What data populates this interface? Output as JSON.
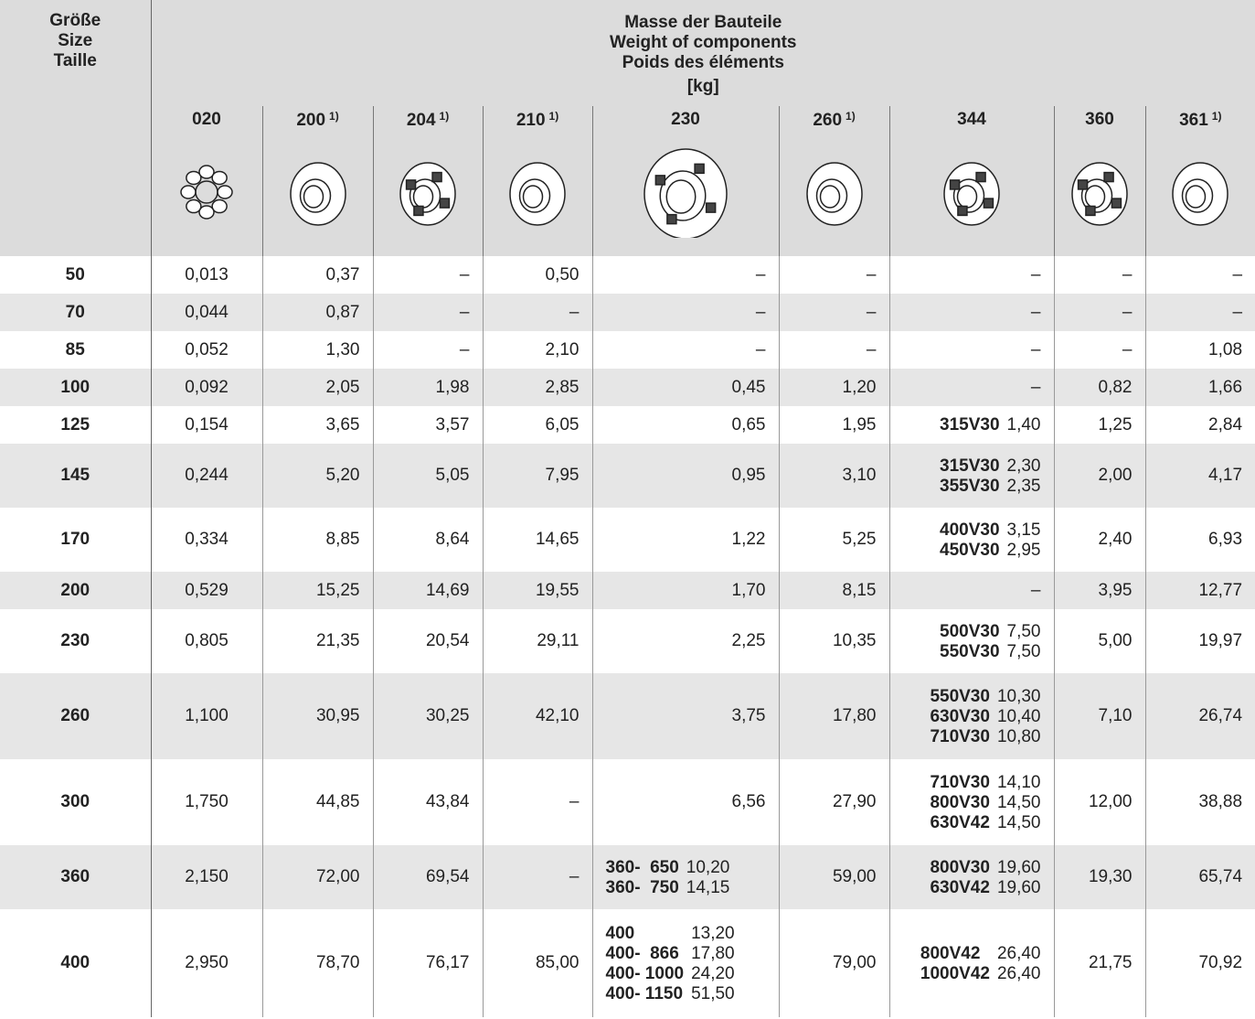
{
  "header": {
    "size_label": [
      "Größe",
      "Size",
      "Taille"
    ],
    "title": [
      "Masse der Bauteile",
      "Weight of components",
      "Poids des éléments"
    ],
    "unit": "[kg]"
  },
  "table": {
    "columns": [
      {
        "code": "020"
      },
      {
        "code": "200",
        "note": "1)"
      },
      {
        "code": "204",
        "note": "1)"
      },
      {
        "code": "210",
        "note": "1)"
      },
      {
        "code": "230"
      },
      {
        "code": "260",
        "note": "1)"
      },
      {
        "code": "344"
      },
      {
        "code": "360"
      },
      {
        "code": "361",
        "note": "1)"
      }
    ],
    "rows": [
      {
        "size": "50",
        "cells": [
          "0,013",
          "0,37",
          "–",
          "0,50",
          "–",
          "–",
          "–",
          "–",
          "–"
        ]
      },
      {
        "size": "70",
        "cells": [
          "0,044",
          "0,87",
          "–",
          "–",
          "–",
          "–",
          "–",
          "–",
          "–"
        ]
      },
      {
        "size": "85",
        "cells": [
          "0,052",
          "1,30",
          "–",
          "2,10",
          "–",
          "–",
          "–",
          "–",
          "1,08"
        ]
      },
      {
        "size": "100",
        "cells": [
          "0,092",
          "2,05",
          "1,98",
          "2,85",
          "0,45",
          "1,20",
          "–",
          "0,82",
          "1,66"
        ]
      },
      {
        "size": "125",
        "cells": [
          "0,154",
          "3,65",
          "3,57",
          "6,05",
          "0,65",
          "1,95",
          [
            {
              "label": "315V30",
              "value": "1,40"
            }
          ],
          "1,25",
          "2,84"
        ]
      },
      {
        "size": "145",
        "cells": [
          "0,244",
          "5,20",
          "5,05",
          "7,95",
          "0,95",
          "3,10",
          [
            {
              "label": "315V30",
              "value": "2,30"
            },
            {
              "label": "355V30",
              "value": "2,35"
            }
          ],
          "2,00",
          "4,17"
        ]
      },
      {
        "size": "170",
        "cells": [
          "0,334",
          "8,85",
          "8,64",
          "14,65",
          "1,22",
          "5,25",
          [
            {
              "label": "400V30",
              "value": "3,15"
            },
            {
              "label": "450V30",
              "value": "2,95"
            }
          ],
          "2,40",
          "6,93"
        ]
      },
      {
        "size": "200",
        "cells": [
          "0,529",
          "15,25",
          "14,69",
          "19,55",
          "1,70",
          "8,15",
          "–",
          "3,95",
          "12,77"
        ]
      },
      {
        "size": "230",
        "cells": [
          "0,805",
          "21,35",
          "20,54",
          "29,11",
          "2,25",
          "10,35",
          [
            {
              "label": "500V30",
              "value": "7,50"
            },
            {
              "label": "550V30",
              "value": "7,50"
            }
          ],
          "5,00",
          "19,97"
        ]
      },
      {
        "size": "260",
        "cells": [
          "1,100",
          "30,95",
          "30,25",
          "42,10",
          "3,75",
          "17,80",
          [
            {
              "label": "550V30",
              "value": "10,30"
            },
            {
              "label": "630V30",
              "value": "10,40"
            },
            {
              "label": "710V30",
              "value": "10,80"
            }
          ],
          "7,10",
          "26,74"
        ]
      },
      {
        "size": "300",
        "cells": [
          "1,750",
          "44,85",
          "43,84",
          "–",
          "6,56",
          "27,90",
          [
            {
              "label": "710V30",
              "value": "14,10"
            },
            {
              "label": "800V30",
              "value": "14,50"
            },
            {
              "label": "630V42",
              "value": "14,50"
            }
          ],
          "12,00",
          "38,88"
        ]
      },
      {
        "size": "360",
        "cells": [
          "2,150",
          "72,00",
          "69,54",
          "–",
          [
            {
              "label": "360-  650",
              "value": "10,20"
            },
            {
              "label": "360-  750",
              "value": "14,15"
            }
          ],
          "59,00",
          [
            {
              "label": "800V30",
              "value": "19,60"
            },
            {
              "label": "630V42",
              "value": "19,60"
            }
          ],
          "19,30",
          "65,74"
        ]
      },
      {
        "size": "400",
        "cells": [
          "2,950",
          "78,70",
          "76,17",
          "85,00",
          [
            {
              "label": "400",
              "value": "13,20"
            },
            {
              "label": "400-  866",
              "value": "17,80"
            },
            {
              "label": "400- 1000",
              "value": "24,20"
            },
            {
              "label": "400- 1150",
              "value": "51,50"
            }
          ],
          "79,00",
          [
            {
              "label": "800V42",
              "value": "26,40"
            },
            {
              "label": "1000V42",
              "value": "26,40"
            }
          ],
          "21,75",
          "70,92"
        ]
      }
    ]
  }
}
